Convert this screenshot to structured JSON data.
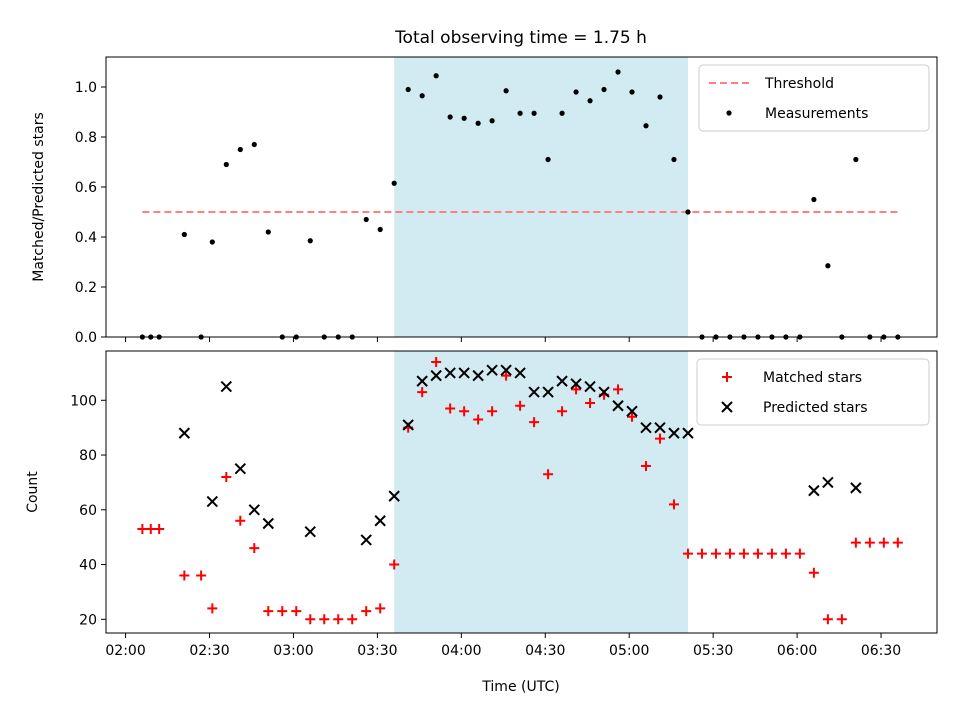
{
  "figure": {
    "title": "Total observing time = 1.75 h",
    "xlabel": "Time (UTC)"
  },
  "chart_data": [
    {
      "type": "scatter",
      "ylabel": "Matched/Predicted stars",
      "ylim": [
        0,
        1.12
      ],
      "yticks": [
        "0.0",
        "0.2",
        "0.4",
        "0.6",
        "0.8",
        "1.0"
      ],
      "ytick_values": [
        0,
        0.2,
        0.4,
        0.6,
        0.8,
        1.0
      ],
      "xlim": [
        "01:53",
        "06:50"
      ],
      "xticks": [
        "02:00",
        "02:30",
        "03:00",
        "03:30",
        "04:00",
        "04:30",
        "05:00",
        "05:30",
        "06:00",
        "06:30"
      ],
      "shaded_interval": [
        "03:36",
        "05:21"
      ],
      "legend": {
        "placement": "upper right",
        "entries": [
          "Threshold",
          "Measurements"
        ]
      },
      "series": [
        {
          "name": "Threshold",
          "style": "dashed-line",
          "color": "#ff8080",
          "x": [
            "02:06",
            "06:36"
          ],
          "y": [
            0.5,
            0.5
          ]
        },
        {
          "name": "Measurements",
          "style": "dot",
          "color": "#000000",
          "x": [
            "02:06",
            "02:09",
            "02:12",
            "02:21",
            "02:27",
            "02:31",
            "02:36",
            "02:41",
            "02:46",
            "02:51",
            "02:56",
            "03:01",
            "03:06",
            "03:11",
            "03:16",
            "03:21",
            "03:26",
            "03:31",
            "03:36",
            "03:41",
            "03:46",
            "03:51",
            "03:56",
            "04:01",
            "04:06",
            "04:11",
            "04:16",
            "04:21",
            "04:26",
            "04:31",
            "04:36",
            "04:41",
            "04:46",
            "04:51",
            "04:56",
            "05:01",
            "05:06",
            "05:11",
            "05:16",
            "05:21",
            "05:26",
            "05:31",
            "05:36",
            "05:41",
            "05:46",
            "05:51",
            "05:56",
            "06:01",
            "06:06",
            "06:11",
            "06:16",
            "06:21",
            "06:26",
            "06:31",
            "06:36"
          ],
          "y": [
            0,
            0,
            0,
            0.41,
            0,
            0.38,
            0.69,
            0.75,
            0.77,
            0.42,
            0,
            0,
            0.385,
            0,
            0,
            0,
            0.47,
            0.43,
            0.615,
            0.99,
            0.965,
            1.045,
            0.88,
            0.875,
            0.855,
            0.865,
            0.985,
            0.895,
            0.895,
            0.71,
            0.895,
            0.98,
            0.945,
            0.99,
            1.06,
            0.98,
            0.845,
            0.96,
            0.71,
            0.5,
            0,
            0,
            0,
            0,
            0,
            0,
            0,
            0,
            0.55,
            0.285,
            0,
            0.71,
            0,
            0,
            0
          ]
        }
      ]
    },
    {
      "type": "scatter",
      "ylabel": "Count",
      "ylim": [
        15,
        118
      ],
      "yticks": [
        "20",
        "40",
        "60",
        "80",
        "100"
      ],
      "ytick_values": [
        20,
        40,
        60,
        80,
        100
      ],
      "xlim": [
        "01:53",
        "06:50"
      ],
      "xticks": [
        "02:00",
        "02:30",
        "03:00",
        "03:30",
        "04:00",
        "04:30",
        "05:00",
        "05:30",
        "06:00",
        "06:30"
      ],
      "shaded_interval": [
        "03:36",
        "05:21"
      ],
      "legend": {
        "placement": "upper right",
        "entries": [
          "Matched stars",
          "Predicted stars"
        ]
      },
      "series": [
        {
          "name": "Matched stars",
          "marker": "+",
          "color": "#ff0000",
          "x": [
            "02:06",
            "02:09",
            "02:12",
            "02:21",
            "02:27",
            "02:31",
            "02:36",
            "02:41",
            "02:46",
            "02:51",
            "02:56",
            "03:01",
            "03:06",
            "03:11",
            "03:16",
            "03:21",
            "03:26",
            "03:31",
            "03:36",
            "03:41",
            "03:46",
            "03:51",
            "03:56",
            "04:01",
            "04:06",
            "04:11",
            "04:16",
            "04:21",
            "04:26",
            "04:31",
            "04:36",
            "04:41",
            "04:46",
            "04:51",
            "04:56",
            "05:01",
            "05:06",
            "05:11",
            "05:16",
            "05:21",
            "05:26",
            "05:31",
            "05:36",
            "05:41",
            "05:46",
            "05:51",
            "05:56",
            "06:01",
            "06:06",
            "06:11",
            "06:16",
            "06:21",
            "06:26",
            "06:31",
            "06:36"
          ],
          "y": [
            53,
            53,
            53,
            36,
            36,
            24,
            72,
            56,
            46,
            23,
            23,
            23,
            20,
            20,
            20,
            20,
            23,
            24,
            40,
            90,
            103,
            114,
            97,
            96,
            93,
            96,
            109,
            98,
            92,
            73,
            96,
            104,
            99,
            102,
            104,
            94,
            76,
            86,
            62,
            44,
            44,
            44,
            44,
            44,
            44,
            44,
            44,
            44,
            37,
            20,
            20,
            48,
            48,
            48,
            48
          ]
        },
        {
          "name": "Predicted stars",
          "marker": "x",
          "color": "#000000",
          "x": [
            "02:21",
            "02:31",
            "02:36",
            "02:41",
            "02:46",
            "02:51",
            "03:06",
            "03:26",
            "03:31",
            "03:36",
            "03:41",
            "03:46",
            "03:51",
            "03:56",
            "04:01",
            "04:06",
            "04:11",
            "04:16",
            "04:21",
            "04:26",
            "04:31",
            "04:36",
            "04:41",
            "04:46",
            "04:51",
            "04:56",
            "05:01",
            "05:06",
            "05:11",
            "05:16",
            "05:21",
            "06:06",
            "06:11",
            "06:21"
          ],
          "y": [
            88,
            63,
            105,
            75,
            60,
            55,
            52,
            49,
            56,
            65,
            91,
            107,
            109,
            110,
            110,
            109,
            111,
            111,
            110,
            103,
            103,
            107,
            106,
            105,
            103,
            98,
            96,
            90,
            90,
            88,
            88,
            67,
            70,
            68
          ]
        }
      ]
    }
  ]
}
